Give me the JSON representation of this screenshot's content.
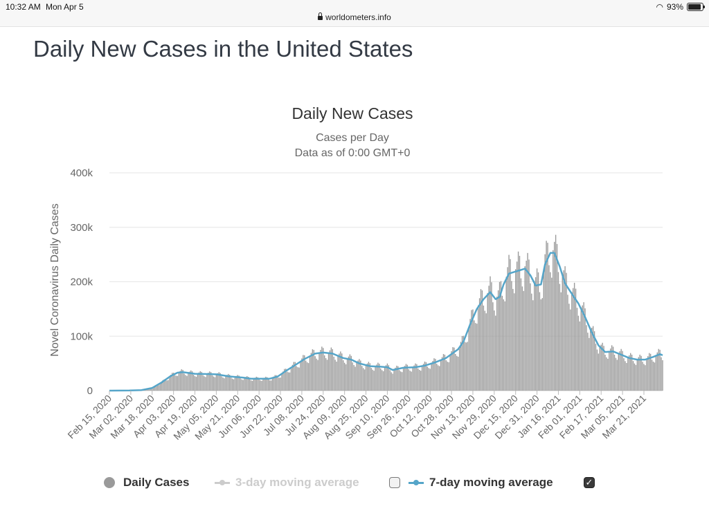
{
  "status_bar": {
    "time": "10:32 AM",
    "date": "Mon Apr 5",
    "url": "worldometers.info",
    "battery": "93%"
  },
  "page": {
    "title": "Daily New Cases in the United States"
  },
  "legend": {
    "daily_cases": "Daily Cases",
    "ma3": "3-day moving average",
    "ma7": "7-day moving average",
    "ma3_checked": false,
    "ma7_checked": true
  },
  "colors": {
    "bars": "#9a9a9a",
    "ma7": "#55a5c9",
    "ma3_disabled": "#cccccc",
    "grid": "#e6e6e6"
  },
  "chart_data": {
    "type": "bar",
    "title": "Daily New Cases",
    "subtitle": "Cases per Day",
    "subtitle2": "Data as of 0:00 GMT+0",
    "ylabel": "Novel Coronavirus Daily Cases",
    "ylim": [
      0,
      400000
    ],
    "y_ticks": [
      {
        "value": 0,
        "label": "0"
      },
      {
        "value": 100000,
        "label": "100k"
      },
      {
        "value": 200000,
        "label": "200k"
      },
      {
        "value": 300000,
        "label": "300k"
      },
      {
        "value": 400000,
        "label": "400k"
      }
    ],
    "x_start": "2020-02-15",
    "x_end": "2021-04-04",
    "x_tick_labels": [
      "Feb 15, 2020",
      "Mar 02, 2020",
      "Mar 18, 2020",
      "Apr 03, 2020",
      "Apr 19, 2020",
      "May 05, 2020",
      "May 21, 2020",
      "Jun 06, 2020",
      "Jun 22, 2020",
      "Jul 08, 2020",
      "Jul 24, 2020",
      "Aug 09, 2020",
      "Aug 25, 2020",
      "Sep 10, 2020",
      "Sep 26, 2020",
      "Oct 12, 2020",
      "Oct 28, 2020",
      "Nov 13, 2020",
      "Nov 29, 2020",
      "Dec 15, 2020",
      "Dec 31, 2020",
      "Jan 16, 2021",
      "Feb 01, 2021",
      "Feb 17, 2021",
      "Mar 05, 2021",
      "Mar 21, 2021"
    ],
    "series": [
      {
        "name": "7-day moving average",
        "kind": "line",
        "points": [
          [
            "2020-02-15",
            0
          ],
          [
            "2020-03-01",
            200
          ],
          [
            "2020-03-10",
            1000
          ],
          [
            "2020-03-18",
            5000
          ],
          [
            "2020-03-25",
            15000
          ],
          [
            "2020-04-01",
            27000
          ],
          [
            "2020-04-06",
            33000
          ],
          [
            "2020-04-10",
            34000
          ],
          [
            "2020-04-19",
            31000
          ],
          [
            "2020-04-29",
            30500
          ],
          [
            "2020-05-05",
            30000
          ],
          [
            "2020-05-15",
            26000
          ],
          [
            "2020-05-25",
            24000
          ],
          [
            "2020-05-31",
            22000
          ],
          [
            "2020-06-06",
            22000
          ],
          [
            "2020-06-14",
            22000
          ],
          [
            "2020-06-20",
            26000
          ],
          [
            "2020-06-26",
            36000
          ],
          [
            "2020-07-03",
            47000
          ],
          [
            "2020-07-10",
            58000
          ],
          [
            "2020-07-18",
            68000
          ],
          [
            "2020-07-24",
            70000
          ],
          [
            "2020-07-31",
            68000
          ],
          [
            "2020-08-08",
            60000
          ],
          [
            "2020-08-14",
            57000
          ],
          [
            "2020-08-20",
            50000
          ],
          [
            "2020-08-28",
            45000
          ],
          [
            "2020-09-05",
            44000
          ],
          [
            "2020-09-10",
            43000
          ],
          [
            "2020-09-14",
            38000
          ],
          [
            "2020-09-22",
            42000
          ],
          [
            "2020-10-01",
            43000
          ],
          [
            "2020-10-08",
            46000
          ],
          [
            "2020-10-16",
            52000
          ],
          [
            "2020-10-24",
            60000
          ],
          [
            "2020-11-02",
            76000
          ],
          [
            "2020-11-06",
            90000
          ],
          [
            "2020-11-11",
            122000
          ],
          [
            "2020-11-16",
            150000
          ],
          [
            "2020-11-21",
            168000
          ],
          [
            "2020-11-26",
            181000
          ],
          [
            "2020-11-30",
            168000
          ],
          [
            "2020-12-03",
            172000
          ],
          [
            "2020-12-06",
            195000
          ],
          [
            "2020-12-10",
            215000
          ],
          [
            "2020-12-14",
            218000
          ],
          [
            "2020-12-18",
            221000
          ],
          [
            "2020-12-22",
            224000
          ],
          [
            "2020-12-26",
            212000
          ],
          [
            "2020-12-30",
            193000
          ],
          [
            "2021-01-03",
            195000
          ],
          [
            "2021-01-06",
            232000
          ],
          [
            "2021-01-10",
            253000
          ],
          [
            "2021-01-13",
            253000
          ],
          [
            "2021-01-17",
            228000
          ],
          [
            "2021-01-21",
            197000
          ],
          [
            "2021-01-26",
            178000
          ],
          [
            "2021-01-31",
            160000
          ],
          [
            "2021-02-05",
            135000
          ],
          [
            "2021-02-10",
            107000
          ],
          [
            "2021-02-15",
            83000
          ],
          [
            "2021-02-20",
            71000
          ],
          [
            "2021-02-26",
            72000
          ],
          [
            "2021-03-04",
            66000
          ],
          [
            "2021-03-10",
            60000
          ],
          [
            "2021-03-16",
            57000
          ],
          [
            "2021-03-22",
            57000
          ],
          [
            "2021-03-28",
            62000
          ],
          [
            "2021-04-02",
            67000
          ],
          [
            "2021-04-04",
            65000
          ]
        ]
      }
    ]
  }
}
